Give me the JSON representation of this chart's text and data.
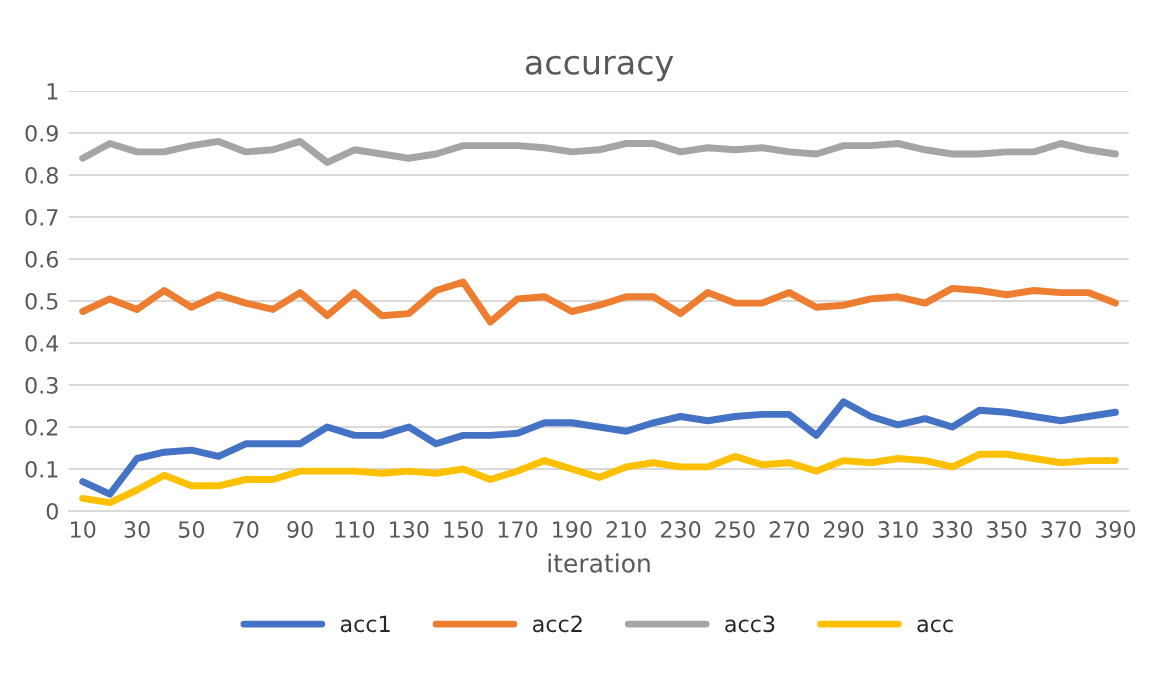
{
  "chart_data": {
    "type": "line",
    "title": "accuracy",
    "xlabel": "iteration",
    "categories": [
      "10",
      null,
      "30",
      null,
      "50",
      null,
      "70",
      null,
      "90",
      null,
      "110",
      null,
      "130",
      null,
      "150",
      null,
      "170",
      null,
      "190",
      null,
      "210",
      null,
      "230",
      null,
      "250",
      null,
      "270",
      null,
      "290",
      null,
      "310",
      null,
      "330",
      null,
      "350",
      null,
      "370",
      null,
      "390"
    ],
    "series": [
      {
        "name": "acc1",
        "color": "#4472c4",
        "values": [
          0.07,
          0.04,
          0.125,
          0.14,
          0.145,
          0.13,
          0.16,
          0.16,
          0.16,
          0.2,
          0.18,
          0.18,
          0.2,
          0.16,
          0.18,
          0.18,
          0.185,
          0.21,
          0.21,
          0.2,
          0.19,
          0.21,
          0.225,
          0.215,
          0.225,
          0.23,
          0.23,
          0.18,
          0.26,
          0.225,
          0.205,
          0.22,
          0.2,
          0.24,
          0.235,
          0.225,
          0.215,
          0.225,
          0.235
        ]
      },
      {
        "name": "acc2",
        "color": "#ed7d31",
        "values": [
          0.475,
          0.505,
          0.48,
          0.525,
          0.485,
          0.515,
          0.495,
          0.48,
          0.52,
          0.465,
          0.52,
          0.465,
          0.47,
          0.525,
          0.545,
          0.45,
          0.505,
          0.51,
          0.475,
          0.49,
          0.51,
          0.51,
          0.47,
          0.52,
          0.495,
          0.495,
          0.52,
          0.485,
          0.49,
          0.505,
          0.51,
          0.495,
          0.53,
          0.525,
          0.515,
          0.525,
          0.52,
          0.52,
          0.495
        ]
      },
      {
        "name": "acc3",
        "color": "#a5a5a5",
        "values": [
          0.84,
          0.875,
          0.855,
          0.855,
          0.87,
          0.88,
          0.855,
          0.86,
          0.88,
          0.83,
          0.86,
          0.85,
          0.84,
          0.85,
          0.87,
          0.87,
          0.87,
          0.865,
          0.855,
          0.86,
          0.875,
          0.875,
          0.855,
          0.865,
          0.86,
          0.865,
          0.855,
          0.85,
          0.87,
          0.87,
          0.875,
          0.86,
          0.85,
          0.85,
          0.855,
          0.855,
          0.875,
          0.86,
          0.85
        ]
      },
      {
        "name": "acc",
        "color": "#ffc000",
        "values": [
          0.03,
          0.02,
          0.05,
          0.085,
          0.06,
          0.06,
          0.075,
          0.075,
          0.095,
          0.095,
          0.095,
          0.09,
          0.095,
          0.09,
          0.1,
          0.075,
          0.095,
          0.12,
          0.1,
          0.08,
          0.105,
          0.115,
          0.105,
          0.105,
          0.13,
          0.11,
          0.115,
          0.095,
          0.12,
          0.115,
          0.125,
          0.12,
          0.105,
          0.135,
          0.135,
          0.125,
          0.115,
          0.12,
          0.12
        ]
      }
    ],
    "ylim": [
      0,
      1
    ],
    "yticks": [
      0,
      0.1,
      0.2,
      0.3,
      0.4,
      0.5,
      0.6,
      0.7,
      0.8,
      0.9,
      1
    ],
    "grid": "y",
    "legend": "bottom",
    "marker": "none",
    "line_style": "solid"
  }
}
